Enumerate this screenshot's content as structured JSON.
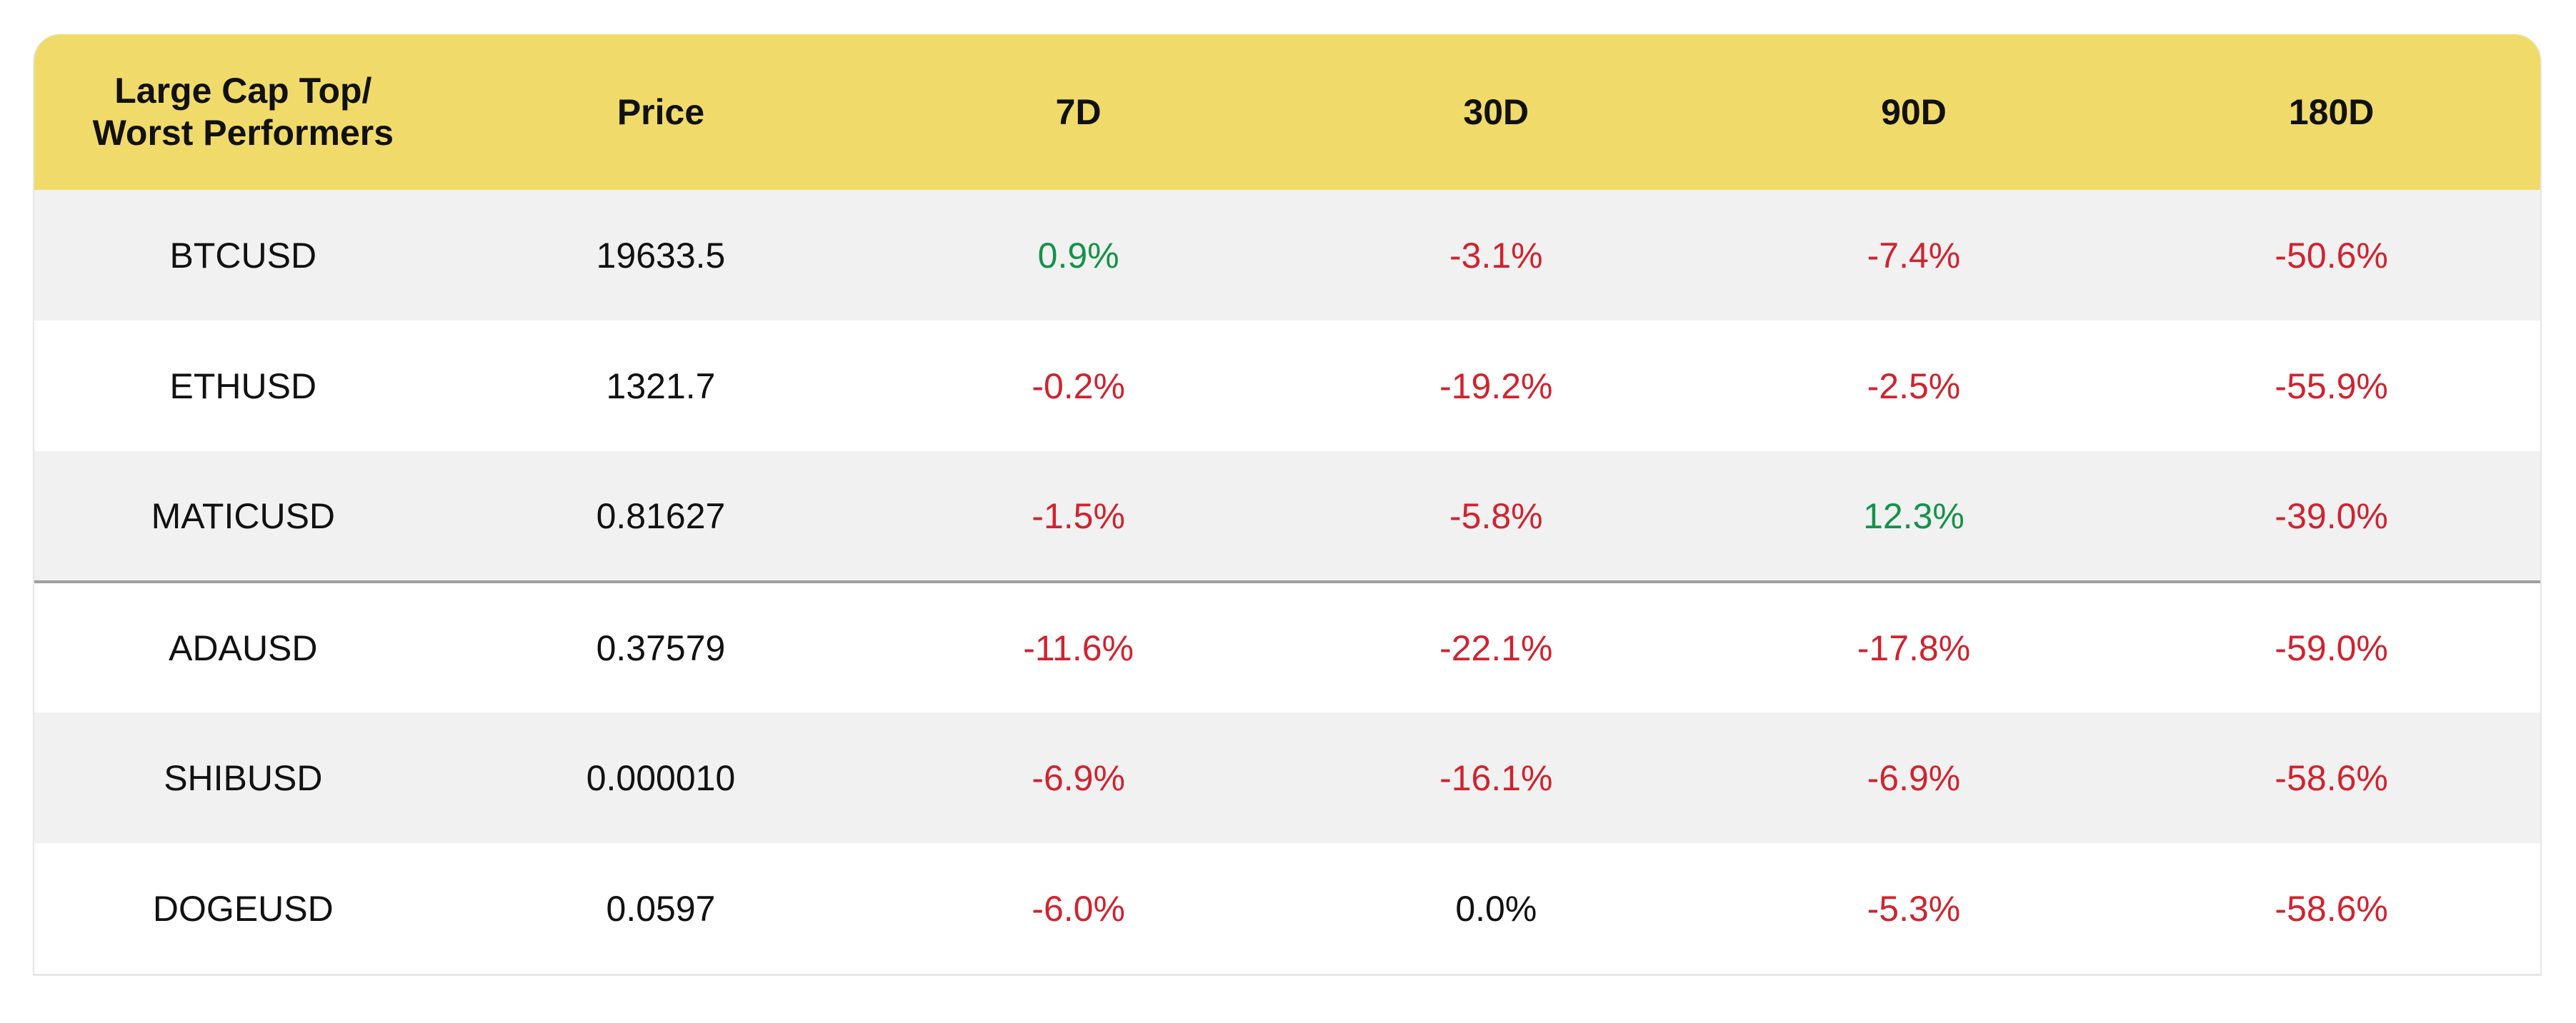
{
  "chart_data": {
    "type": "table",
    "columns": [
      "Large Cap Top/\nWorst Performers",
      "Price",
      "7D",
      "30D",
      "90D",
      "180D"
    ],
    "rows": [
      {
        "symbol": "BTCUSD",
        "price": "19633.5",
        "d7": "0.9%",
        "d30": "-3.1%",
        "d90": "-7.4%",
        "d180": "-50.6%"
      },
      {
        "symbol": "ETHUSD",
        "price": "1321.7",
        "d7": "-0.2%",
        "d30": "-19.2%",
        "d90": "-2.5%",
        "d180": "-55.9%"
      },
      {
        "symbol": "MATICUSD",
        "price": "0.81627",
        "d7": "-1.5%",
        "d30": "-5.8%",
        "d90": "12.3%",
        "d180": "-39.0%"
      },
      {
        "symbol": "ADAUSD",
        "price": "0.37579",
        "d7": "-11.6%",
        "d30": "-22.1%",
        "d90": "-17.8%",
        "d180": "-59.0%"
      },
      {
        "symbol": "SHIBUSD",
        "price": "0.000010",
        "d7": "-6.9%",
        "d30": "-16.1%",
        "d90": "-6.9%",
        "d180": "-58.6%"
      },
      {
        "symbol": "DOGEUSD",
        "price": "0.0597",
        "d7": "-6.0%",
        "d30": "0.0%",
        "d90": "-5.3%",
        "d180": "-58.6%"
      }
    ],
    "group_divider_after_row": 3
  },
  "colors": {
    "header_bg": "#f0db6a",
    "row_shaded": "#f1f1f1",
    "row_plain": "#ffffff",
    "positive": "#14924a",
    "negative": "#d0232f",
    "neutral": "#111111",
    "divider": "#9e9e9e"
  }
}
